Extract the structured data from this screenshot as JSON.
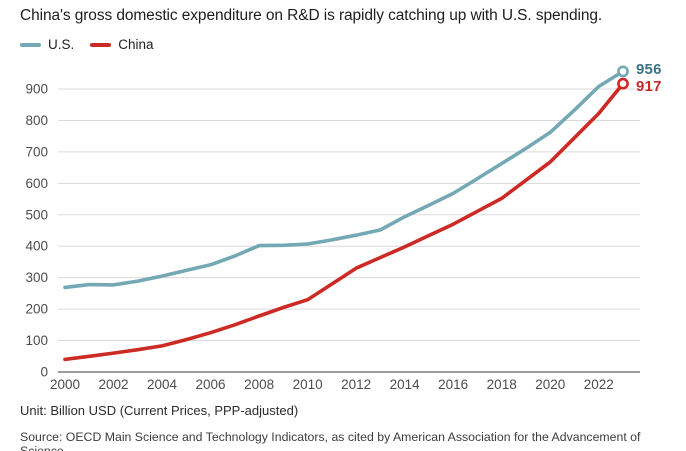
{
  "title": "China's gross domestic expenditure on R&D is rapidly catching up with U.S. spending.",
  "legend": [
    {
      "label": "U.S.",
      "color": "#74a8b5"
    },
    {
      "label": "China",
      "color": "#cc2a24"
    }
  ],
  "unit_note": "Unit: Billion USD (Current Prices, PPP-adjusted)",
  "source": "Source: OECD Main Science and Technology Indicators, as cited by American Association for the Advancement of Science.",
  "colors": {
    "background": "#ffffff",
    "grid": "#dadada",
    "zero_axis": "#9b9b9b",
    "tick_text": "#4d4d4d",
    "title_text": "#1d1d1d"
  },
  "chart_data": {
    "type": "line",
    "title": "China's gross domestic expenditure on R&D is rapidly catching up with U.S. spending.",
    "xlabel": "",
    "ylabel": "Billion USD (Current Prices, PPP-adjusted)",
    "x": [
      2000,
      2001,
      2002,
      2003,
      2004,
      2005,
      2006,
      2007,
      2008,
      2009,
      2010,
      2011,
      2012,
      2013,
      2014,
      2015,
      2016,
      2017,
      2018,
      2019,
      2020,
      2021,
      2022,
      2023
    ],
    "series": [
      {
        "name": "U.S.",
        "color": "#74a8b5",
        "label_color": "#3b7487",
        "end_label": "956",
        "end_value": 956,
        "values": [
          269,
          278,
          277,
          289,
          305,
          323,
          341,
          369,
          402,
          403,
          407,
          420,
          435,
          452,
          494,
          530,
          568,
          615,
          663,
          711,
          762,
          833,
          908,
          956
        ]
      },
      {
        "name": "China",
        "color": "#cc2a24",
        "label_color": "#c4292c",
        "end_label": "917",
        "end_value": 917,
        "values": [
          40,
          50,
          60,
          71,
          83,
          103,
          125,
          150,
          178,
          205,
          230,
          280,
          330,
          364,
          398,
          434,
          470,
          511,
          552,
          610,
          668,
          745,
          822,
          917
        ]
      }
    ],
    "x_tick_labels": [
      2000,
      2002,
      2004,
      2006,
      2008,
      2010,
      2012,
      2014,
      2016,
      2018,
      2020,
      2022
    ],
    "yticks": [
      0,
      100,
      200,
      300,
      400,
      500,
      600,
      700,
      800,
      900
    ],
    "ylim": [
      0,
      956
    ],
    "xlim": [
      2000,
      2023
    ],
    "grid": true,
    "legend_position": "top-left",
    "end_markers": "open-circle"
  }
}
